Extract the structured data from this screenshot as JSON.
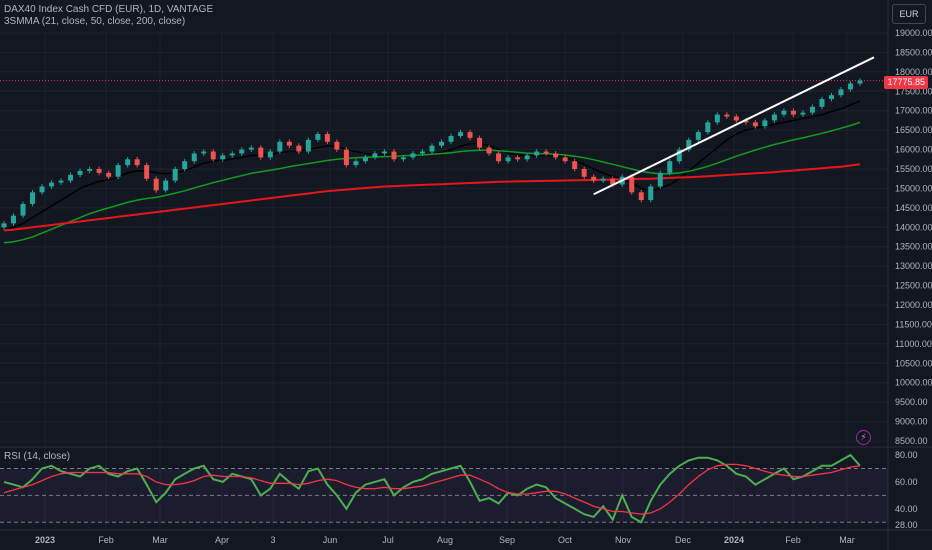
{
  "legend": {
    "title": "DAX40 Index Cash CFD (EUR), 1D, VANTAGE",
    "indicator": "3SMMA (21, close, 50, close, 200, close)",
    "rsi": "RSI (14, close)"
  },
  "currency": "EUR",
  "last_price": "17775.85",
  "colors": {
    "up": "#26a69a",
    "down": "#ef5350",
    "ma21": "#000000",
    "ma50": "#0f9d20",
    "ma200": "#e8151a",
    "trendline": "#ffffff",
    "rsi": "#4caf50",
    "rsi_ma": "#f23645"
  },
  "icons": {
    "alert": "lightning-bolt-icon"
  },
  "chart_data": [
    {
      "type": "candlestick",
      "title": "DAX40 Index Cash CFD (EUR), 1D, VANTAGE",
      "y_ticks": [
        "19000.00",
        "18500.00",
        "18000.00",
        "17500.00",
        "17000.00",
        "16500.00",
        "16000.00",
        "15500.00",
        "15000.00",
        "14500.00",
        "14000.00",
        "13500.00",
        "13000.00",
        "12500.00",
        "12000.00",
        "11500.00",
        "11000.00",
        "10500.00",
        "10000.00",
        "9500.00",
        "9000.00",
        "8500.00"
      ],
      "x_ticks": [
        "2023",
        "Feb",
        "Mar",
        "Apr",
        "3",
        "Jun",
        "Jul",
        "Aug",
        "Sep",
        "Oct",
        "Nov",
        "Dec",
        "2024",
        "Feb",
        "Mar"
      ],
      "ylim": [
        8500,
        19000
      ],
      "last_price": 17775.85,
      "close": [
        14100,
        14300,
        14600,
        14900,
        15050,
        15150,
        15200,
        15350,
        15450,
        15500,
        15400,
        15300,
        15600,
        15750,
        15600,
        15250,
        14950,
        15200,
        15500,
        15700,
        15900,
        15950,
        15750,
        15850,
        15900,
        16000,
        16050,
        15800,
        15950,
        16200,
        16100,
        15950,
        16250,
        16400,
        16200,
        16000,
        15600,
        15700,
        15800,
        15900,
        15950,
        15750,
        15800,
        15900,
        15950,
        16100,
        16200,
        16350,
        16450,
        16300,
        16050,
        15900,
        15700,
        15800,
        15750,
        15850,
        15950,
        15900,
        15800,
        15700,
        15500,
        15300,
        15200,
        15250,
        15100,
        15300,
        14900,
        14700,
        15050,
        15400,
        15700,
        16000,
        16250,
        16450,
        16700,
        16900,
        16850,
        16750,
        16700,
        16600,
        16750,
        16900,
        17000,
        16900,
        16950,
        17100,
        17300,
        17400,
        17550,
        17700,
        17776
      ],
      "series": [
        {
          "name": "21",
          "values": [
            13950,
            14000,
            14100,
            14250,
            14400,
            14550,
            14700,
            14850,
            15000,
            15100,
            15180,
            15220,
            15300,
            15400,
            15450,
            15450,
            15400,
            15380,
            15400,
            15450,
            15550,
            15650,
            15700,
            15730,
            15760,
            15800,
            15850,
            15850,
            15870,
            15920,
            15950,
            15960,
            16000,
            16050,
            16100,
            16080,
            16000,
            15950,
            15900,
            15880,
            15870,
            15860,
            15840,
            15840,
            15850,
            15880,
            15930,
            16000,
            16080,
            16150,
            16150,
            16100,
            16000,
            15920,
            15860,
            15840,
            15840,
            15850,
            15840,
            15800,
            15720,
            15620,
            15500,
            15400,
            15300,
            15250,
            15150,
            15000,
            14950,
            15000,
            15100,
            15250,
            15450,
            15650,
            15850,
            16050,
            16250,
            16400,
            16500,
            16550,
            16600,
            16650,
            16700,
            16750,
            16800,
            16850,
            16900,
            16980,
            17050,
            17150,
            17250
          ]
        },
        {
          "name": "50",
          "values": [
            13600,
            13630,
            13680,
            13750,
            13850,
            13950,
            14050,
            14150,
            14250,
            14350,
            14430,
            14500,
            14570,
            14640,
            14700,
            14740,
            14770,
            14820,
            14880,
            14940,
            15010,
            15080,
            15150,
            15210,
            15270,
            15330,
            15390,
            15430,
            15470,
            15510,
            15560,
            15600,
            15640,
            15680,
            15720,
            15750,
            15770,
            15790,
            15800,
            15810,
            15820,
            15830,
            15840,
            15850,
            15860,
            15880,
            15900,
            15920,
            15950,
            15970,
            15980,
            15980,
            15970,
            15950,
            15930,
            15910,
            15900,
            15890,
            15880,
            15860,
            15830,
            15790,
            15740,
            15680,
            15620,
            15560,
            15500,
            15440,
            15400,
            15380,
            15380,
            15400,
            15440,
            15500,
            15570,
            15650,
            15740,
            15830,
            15910,
            15990,
            16060,
            16130,
            16190,
            16250,
            16300,
            16360,
            16420,
            16480,
            16550,
            16620,
            16700
          ]
        },
        {
          "name": "200",
          "values": [
            13920,
            13940,
            13970,
            14000,
            14030,
            14060,
            14090,
            14120,
            14150,
            14180,
            14210,
            14240,
            14270,
            14300,
            14330,
            14360,
            14390,
            14420,
            14450,
            14480,
            14510,
            14540,
            14570,
            14600,
            14630,
            14660,
            14690,
            14720,
            14750,
            14780,
            14810,
            14840,
            14870,
            14900,
            14930,
            14950,
            14970,
            14990,
            15010,
            15030,
            15050,
            15060,
            15070,
            15080,
            15090,
            15100,
            15110,
            15120,
            15130,
            15140,
            15150,
            15160,
            15170,
            15175,
            15180,
            15185,
            15190,
            15195,
            15200,
            15205,
            15210,
            15215,
            15220,
            15225,
            15230,
            15235,
            15240,
            15245,
            15250,
            15260,
            15270,
            15280,
            15290,
            15300,
            15315,
            15330,
            15345,
            15360,
            15375,
            15390,
            15405,
            15420,
            15440,
            15460,
            15480,
            15500,
            15520,
            15540,
            15560,
            15590,
            15620
          ]
        }
      ],
      "trendline": {
        "from": {
          "i": 62,
          "price": 14850
        },
        "to": {
          "i": 90,
          "price": 18400
        }
      }
    },
    {
      "type": "line",
      "title": "RSI (14, close)",
      "y_ticks": [
        "80.00",
        "60.00",
        "40.00",
        "28.00"
      ],
      "ylim": [
        26,
        84
      ],
      "bands": [
        70,
        50,
        30
      ],
      "series": [
        {
          "name": "RSI",
          "values": [
            60,
            58,
            56,
            62,
            70,
            72,
            68,
            66,
            64,
            70,
            72,
            66,
            64,
            68,
            70,
            58,
            45,
            52,
            62,
            66,
            70,
            72,
            62,
            60,
            66,
            64,
            62,
            50,
            55,
            66,
            60,
            55,
            68,
            70,
            58,
            50,
            40,
            52,
            58,
            60,
            62,
            50,
            56,
            60,
            62,
            66,
            68,
            70,
            72,
            60,
            46,
            48,
            44,
            52,
            50,
            55,
            58,
            56,
            48,
            44,
            40,
            36,
            34,
            42,
            32,
            50,
            34,
            30,
            46,
            58,
            66,
            72,
            76,
            78,
            78,
            76,
            72,
            66,
            64,
            58,
            62,
            66,
            70,
            62,
            64,
            68,
            72,
            72,
            76,
            80,
            72
          ]
        },
        {
          "name": "MA",
          "values": [
            52,
            54,
            56,
            58,
            61,
            64,
            66,
            67,
            67,
            67,
            67,
            67,
            66,
            66,
            66,
            64,
            60,
            58,
            58,
            59,
            61,
            64,
            65,
            64,
            64,
            64,
            63,
            61,
            59,
            59,
            59,
            58,
            59,
            61,
            62,
            61,
            58,
            56,
            55,
            55,
            56,
            55,
            55,
            56,
            57,
            59,
            61,
            63,
            65,
            65,
            62,
            59,
            55,
            52,
            51,
            51,
            52,
            53,
            53,
            51,
            48,
            45,
            42,
            40,
            38,
            38,
            37,
            36,
            37,
            40,
            45,
            51,
            58,
            64,
            69,
            72,
            73,
            73,
            72,
            70,
            68,
            66,
            65,
            64,
            64,
            65,
            66,
            67,
            69,
            71,
            72
          ]
        }
      ]
    }
  ]
}
